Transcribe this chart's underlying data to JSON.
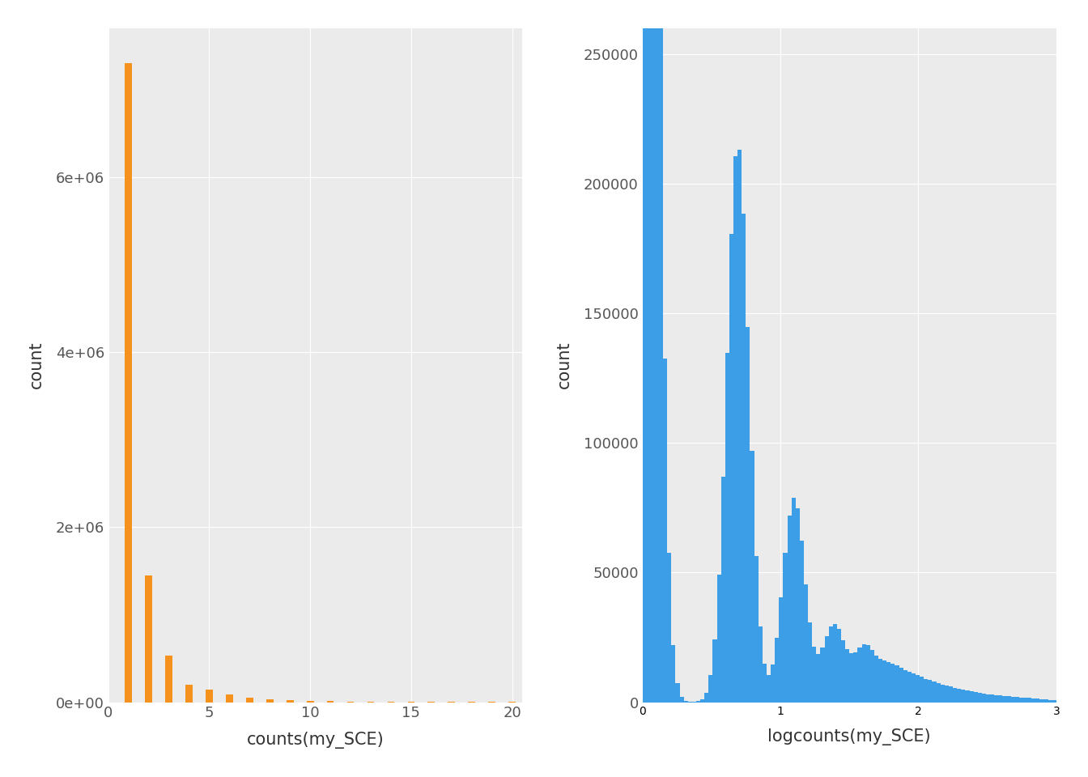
{
  "left_title": "counts(my_SCE)",
  "right_title": "logcounts(my_SCE)",
  "left_ylabel": "count",
  "right_ylabel": "count",
  "left_bar_color": "#F5921E",
  "right_bar_color": "#3D9EE8",
  "bg_color": "#EBEBEB",
  "grid_color": "#FFFFFF",
  "left_xlim": [
    0,
    20.5
  ],
  "left_ylim": [
    0,
    7700000
  ],
  "right_xlim": [
    0,
    3.0
  ],
  "right_ylim": [
    0,
    260000
  ],
  "left_xticks": [
    0,
    5,
    10,
    15,
    20
  ],
  "right_xticks": [
    0,
    1,
    2,
    3
  ],
  "left_yticks": [
    0,
    2000000,
    4000000,
    6000000
  ],
  "left_ytick_labels": [
    "0e+00",
    "2e+06",
    "4e+06",
    "6e+06"
  ],
  "right_yticks": [
    0,
    50000,
    100000,
    150000,
    200000,
    250000
  ],
  "right_ytick_labels": [
    "0",
    "50000",
    "100000",
    "150000",
    "200000",
    "250000"
  ],
  "font_size": 13,
  "axis_label_size": 15,
  "left_bar_heights": [
    7300000,
    1450000,
    530000,
    200000,
    140000,
    85000,
    55000,
    35000,
    24000,
    16000,
    12000,
    9000,
    7000,
    5500,
    4500,
    3500,
    3000,
    2500,
    2000,
    1500
  ],
  "left_bar_positions": [
    1,
    2,
    3,
    4,
    5,
    6,
    7,
    8,
    9,
    10,
    11,
    12,
    13,
    14,
    15,
    16,
    17,
    18,
    19,
    20
  ]
}
